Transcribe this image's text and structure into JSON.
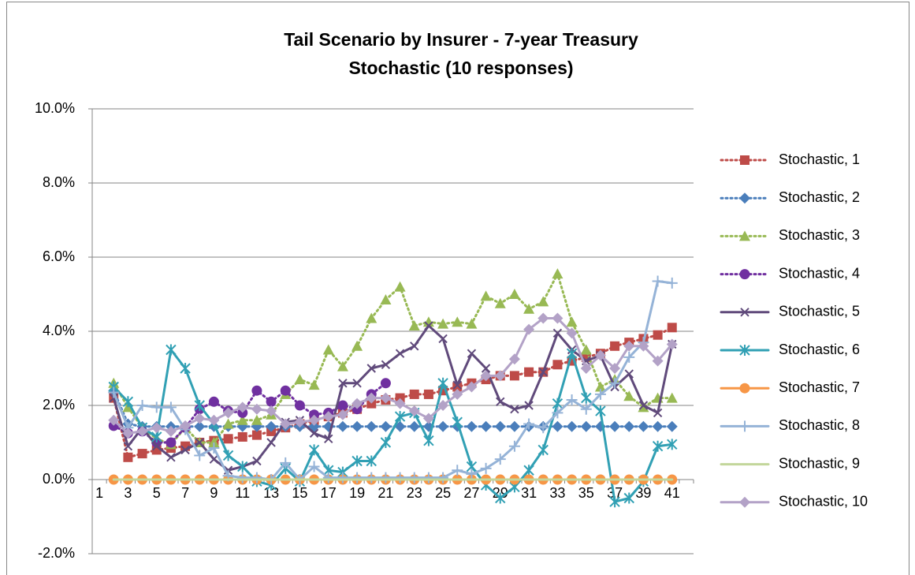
{
  "chart_data": {
    "type": "line",
    "title": [
      "Tail Scenario by Insurer - 7-year Treasury",
      "Stochastic (10 responses)"
    ],
    "categories": [
      "1",
      "2",
      "3",
      "4",
      "5",
      "6",
      "7",
      "8",
      "9",
      "10",
      "11",
      "12",
      "13",
      "14",
      "15",
      "16",
      "17",
      "18",
      "19",
      "20",
      "21",
      "22",
      "23",
      "24",
      "25",
      "26",
      "27",
      "28",
      "29",
      "30",
      "31",
      "32",
      "33",
      "34",
      "35",
      "36",
      "37",
      "38",
      "39",
      "40",
      "41",
      null
    ],
    "ylim": [
      -2,
      10
    ],
    "yticks": [
      {
        "value": -2,
        "label": "-2.0%"
      },
      {
        "value": 0,
        "label": "0.0%"
      },
      {
        "value": 2,
        "label": "2.0%"
      },
      {
        "value": 4,
        "label": "4.0%"
      },
      {
        "value": 6,
        "label": "6.0%"
      },
      {
        "value": 8,
        "label": "8.0%"
      },
      {
        "value": 10,
        "label": "10.0%"
      }
    ],
    "grid": true,
    "legend": "right",
    "series": [
      {
        "name": "Stochastic, 1",
        "color": "#be4b48",
        "dash": "dotted",
        "marker": "square",
        "values": [
          null,
          2.2,
          0.6,
          0.7,
          0.8,
          0.85,
          0.9,
          1.0,
          1.05,
          1.1,
          1.15,
          1.2,
          1.3,
          1.4,
          1.5,
          1.6,
          1.7,
          1.8,
          1.9,
          2.05,
          2.15,
          2.2,
          2.3,
          2.3,
          2.4,
          2.5,
          2.6,
          2.7,
          2.8,
          2.8,
          2.9,
          2.9,
          3.1,
          3.2,
          3.3,
          3.4,
          3.6,
          3.7,
          3.8,
          3.9,
          4.1,
          null
        ]
      },
      {
        "name": "Stochastic, 2",
        "color": "#4a7ebb",
        "dash": "dotted",
        "marker": "diamond",
        "values": [
          null,
          2.4,
          1.5,
          1.43,
          1.43,
          1.43,
          1.43,
          1.43,
          1.43,
          1.43,
          1.43,
          1.43,
          1.43,
          1.43,
          1.43,
          1.43,
          1.43,
          1.43,
          1.43,
          1.43,
          1.43,
          1.43,
          1.43,
          1.43,
          1.43,
          1.43,
          1.43,
          1.43,
          1.43,
          1.43,
          1.43,
          1.43,
          1.43,
          1.43,
          1.43,
          1.43,
          1.43,
          1.43,
          1.43,
          1.43,
          1.43,
          null
        ]
      },
      {
        "name": "Stochastic, 3",
        "color": "#98b954",
        "dash": "dotted",
        "marker": "triangle",
        "values": [
          null,
          2.6,
          1.95,
          1.4,
          1.1,
          0.95,
          1.4,
          1.0,
          1.0,
          1.5,
          1.6,
          1.6,
          1.75,
          2.3,
          2.7,
          2.55,
          3.5,
          3.05,
          3.6,
          4.35,
          4.85,
          5.2,
          4.15,
          4.25,
          4.2,
          4.25,
          4.2,
          4.95,
          4.75,
          5.0,
          4.6,
          4.8,
          5.55,
          4.25,
          3.5,
          2.5,
          2.7,
          2.25,
          1.95,
          2.2,
          2.2,
          null
        ]
      },
      {
        "name": "Stochastic, 4",
        "color": "#7030a0",
        "dash": "dotted",
        "marker": "circle",
        "values": [
          null,
          1.45,
          1.25,
          1.3,
          1.0,
          1.0,
          1.4,
          1.9,
          2.1,
          1.85,
          1.8,
          2.4,
          2.1,
          2.4,
          2.0,
          1.75,
          1.8,
          2.0,
          1.9,
          2.3,
          2.6,
          null,
          null,
          null,
          null,
          null,
          null,
          null,
          null,
          null,
          null,
          null,
          null,
          null,
          null,
          null,
          null,
          null,
          null,
          null,
          null,
          null
        ]
      },
      {
        "name": "Stochastic, 5",
        "color": "#604a7b",
        "dash": "solid",
        "marker": "x",
        "values": [
          null,
          2.2,
          0.9,
          1.4,
          0.9,
          0.6,
          0.8,
          1.0,
          0.55,
          0.25,
          0.35,
          0.5,
          1.0,
          1.55,
          1.6,
          1.25,
          1.1,
          2.6,
          2.6,
          3.0,
          3.1,
          3.4,
          3.6,
          4.15,
          3.8,
          2.55,
          3.4,
          3.0,
          2.1,
          1.9,
          2.0,
          2.9,
          3.95,
          3.5,
          3.2,
          3.35,
          2.5,
          2.85,
          2.0,
          1.8,
          3.65,
          null
        ]
      },
      {
        "name": "Stochastic, 6",
        "color": "#31a0b4",
        "dash": "solid",
        "marker": "asterisk",
        "values": [
          null,
          2.5,
          2.1,
          1.4,
          1.15,
          3.5,
          3.0,
          2.0,
          1.5,
          0.65,
          0.35,
          -0.05,
          -0.15,
          0.3,
          -0.05,
          0.8,
          0.25,
          0.2,
          0.5,
          0.5,
          1.0,
          1.7,
          1.8,
          1.05,
          2.6,
          1.55,
          0.35,
          -0.15,
          -0.5,
          -0.2,
          0.25,
          0.8,
          2.05,
          3.4,
          2.2,
          1.85,
          -0.6,
          -0.5,
          -0.05,
          0.9,
          0.95,
          null
        ]
      },
      {
        "name": "Stochastic, 7",
        "color": "#f79646",
        "dash": "solid",
        "marker": "circle",
        "values": [
          null,
          0,
          0,
          0,
          0,
          0,
          0,
          0,
          0,
          0,
          0,
          0,
          0,
          0,
          0,
          0,
          0,
          0,
          0,
          0,
          0,
          0,
          0,
          0,
          0,
          0,
          0,
          0,
          0,
          0,
          0,
          0,
          0,
          0,
          0,
          0,
          0,
          0,
          0,
          0,
          0,
          null
        ]
      },
      {
        "name": "Stochastic, 8",
        "color": "#95b3d7",
        "dash": "solid",
        "marker": "plus",
        "values": [
          null,
          2.35,
          1.4,
          2.0,
          1.95,
          1.95,
          1.35,
          0.65,
          0.85,
          0.1,
          0.05,
          0.05,
          0.0,
          0.45,
          0.0,
          0.35,
          0.05,
          0.05,
          0.05,
          0.05,
          0.05,
          0.05,
          0.05,
          0.05,
          0.05,
          0.25,
          0.15,
          0.3,
          0.55,
          0.9,
          1.5,
          1.4,
          1.8,
          2.15,
          1.9,
          2.3,
          2.6,
          3.3,
          3.7,
          5.35,
          5.3,
          null
        ]
      },
      {
        "name": "Stochastic, 9",
        "color": "#c3d69b",
        "dash": "solid",
        "marker": "none",
        "values": [
          null,
          0,
          0,
          0,
          0,
          0,
          0,
          0,
          0,
          0,
          0,
          0,
          0,
          0,
          0,
          0,
          0,
          0,
          0,
          0,
          0,
          0,
          0,
          0,
          0,
          0,
          0,
          0,
          0,
          0,
          0,
          0,
          0,
          0,
          0,
          0,
          0,
          0,
          0,
          0,
          0,
          null
        ]
      },
      {
        "name": "Stochastic, 10",
        "color": "#b3a2c7",
        "dash": "solid",
        "marker": "diamond",
        "values": [
          null,
          1.6,
          1.25,
          1.3,
          1.4,
          1.3,
          1.45,
          1.65,
          1.6,
          1.8,
          1.95,
          1.9,
          1.85,
          1.5,
          1.55,
          1.6,
          1.7,
          1.75,
          2.05,
          2.2,
          2.2,
          2.05,
          1.85,
          1.65,
          2.0,
          2.3,
          2.5,
          2.8,
          2.8,
          3.25,
          4.05,
          4.35,
          4.35,
          3.95,
          3.0,
          3.35,
          3.0,
          3.6,
          3.6,
          3.2,
          3.65,
          null
        ]
      }
    ]
  }
}
